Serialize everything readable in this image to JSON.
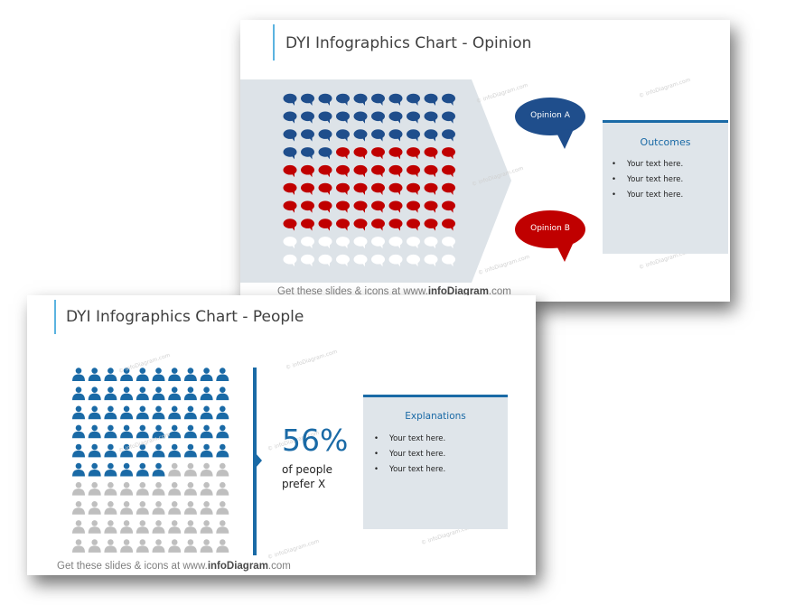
{
  "slide_opinion": {
    "title": "DYI Infographics Chart - Opinion",
    "footer_prefix": "Get these slides & icons at www.",
    "footer_brand": "infoDiagram",
    "footer_suffix": ".com",
    "watermark": "© infoDiagram.com",
    "grid": {
      "rows": 10,
      "cols": 10,
      "opinion_a_count": 33,
      "opinion_b_count": 47,
      "blank_count": 20
    },
    "opinion_a_label": "Opinion A",
    "opinion_b_label": "Opinion B",
    "box": {
      "title": "Outcomes",
      "items": [
        "Your text here.",
        "Your text here.",
        "Your text here."
      ]
    },
    "colors": {
      "opinion_a": "#1f4e8c",
      "opinion_b": "#c00000",
      "blank": "#ffffff",
      "panel": "#dfe5ea",
      "accent": "#1a6aa6"
    }
  },
  "slide_people": {
    "title": "DYI Infographics Chart - People",
    "footer_prefix": "Get these slides & icons at www.",
    "footer_brand": "infoDiagram",
    "footer_suffix": ".com",
    "watermark": "© infoDiagram.com",
    "grid": {
      "rows": 10,
      "cols": 10,
      "highlighted_count": 56
    },
    "percent": "56%",
    "percent_caption_line1": "of people",
    "percent_caption_line2": "prefer X",
    "box": {
      "title": "Explanations",
      "items": [
        "Your text here.",
        "Your text here.",
        "Your text here."
      ]
    },
    "colors": {
      "highlight": "#1a6aa6",
      "muted": "#bfbfbf",
      "panel": "#dfe5ea"
    }
  }
}
